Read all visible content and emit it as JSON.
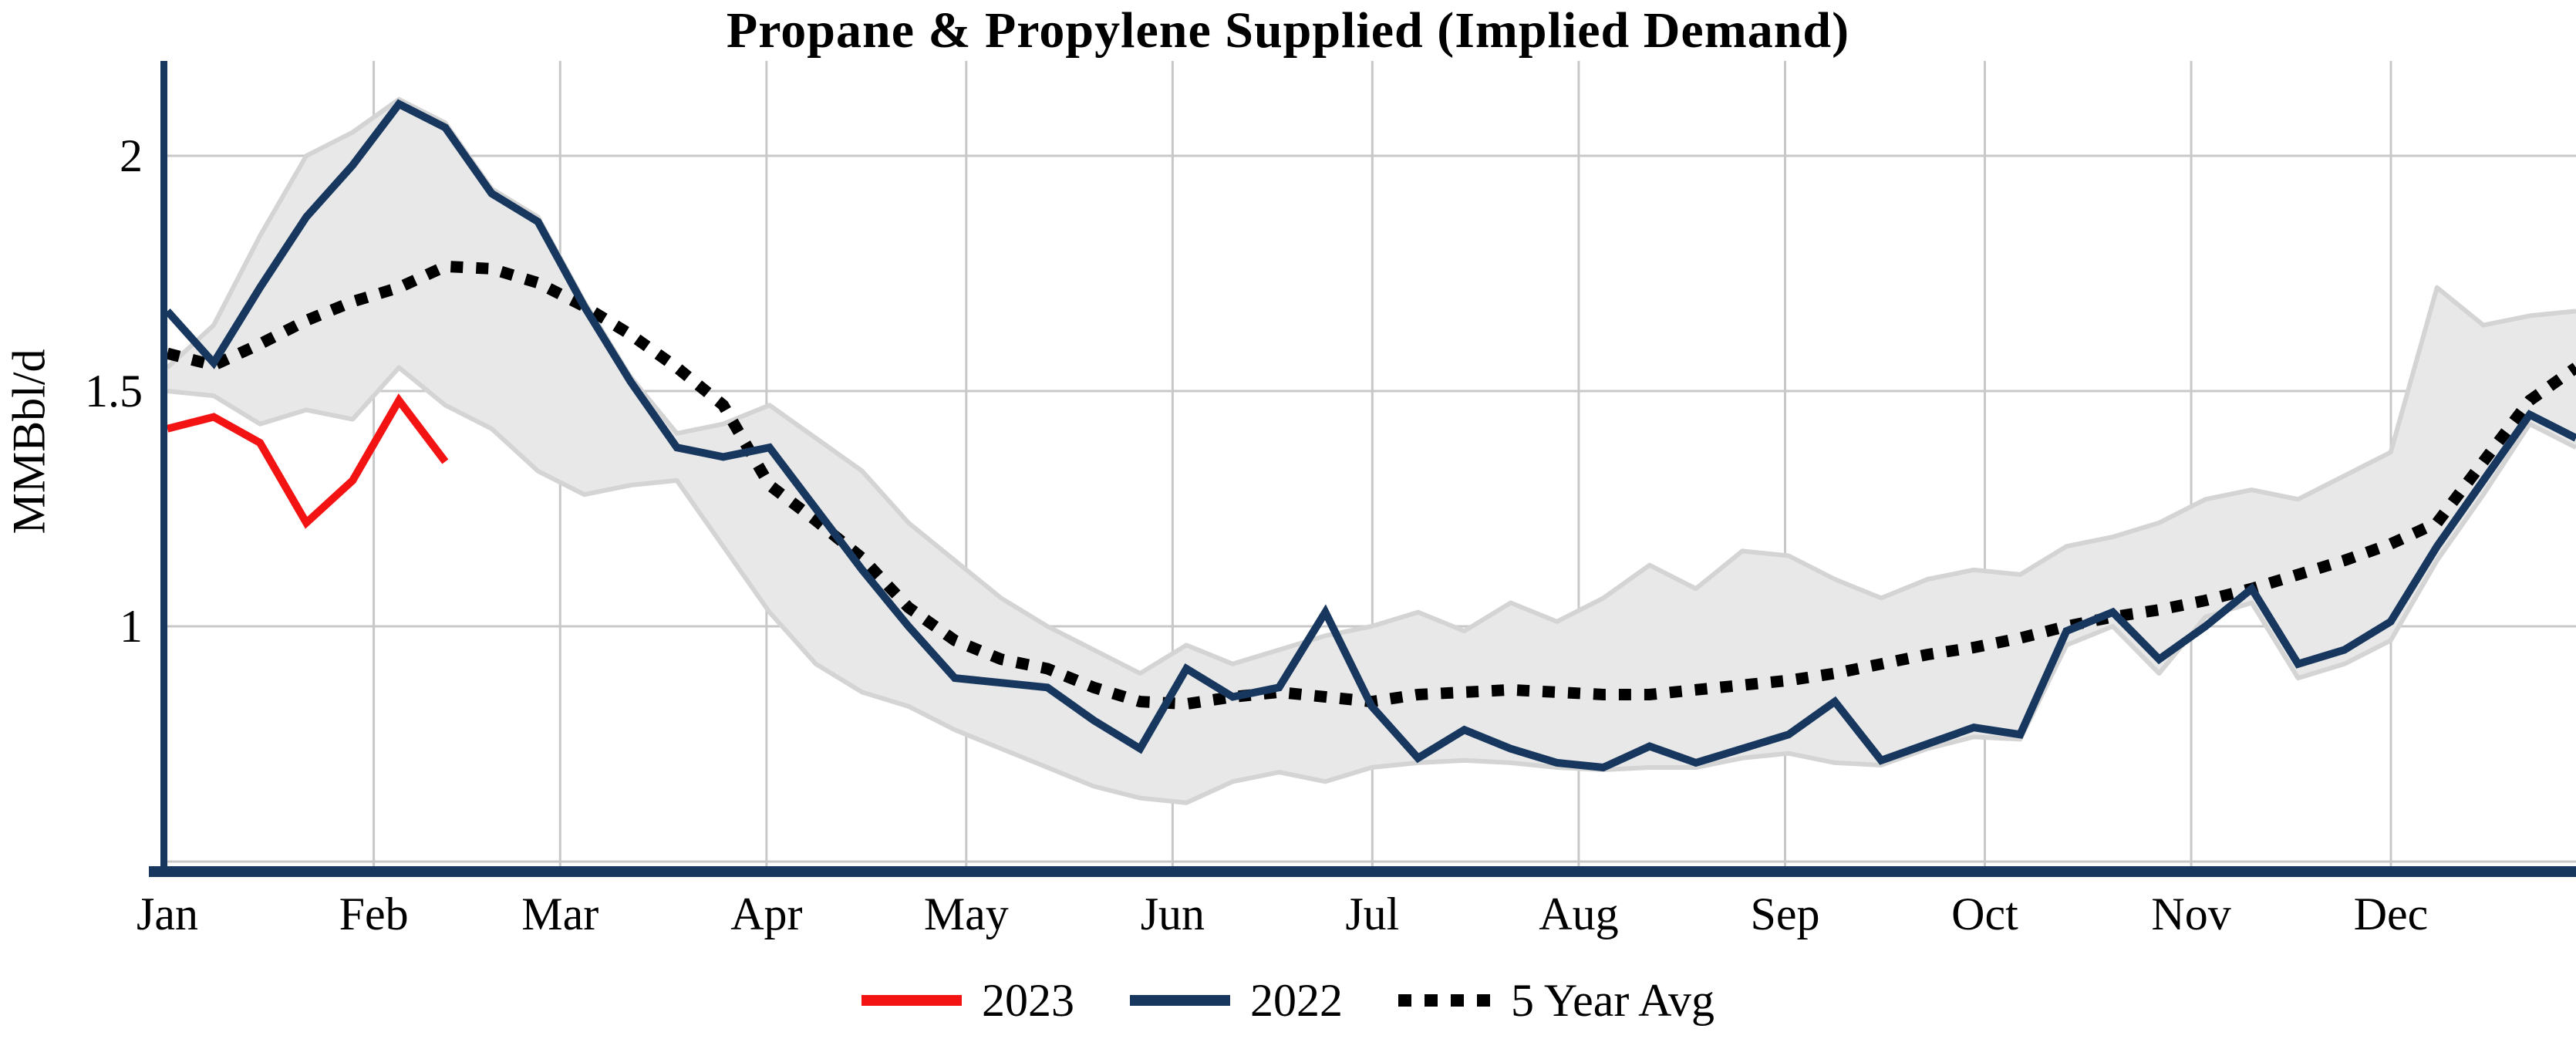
{
  "title": "Propane & Propylene Supplied (Implied Demand)",
  "y_axis": {
    "label": "MMBbl/d",
    "ticks": [
      {
        "label": "2",
        "value": 2.0
      },
      {
        "label": "1.5",
        "value": 1.5
      },
      {
        "label": "1",
        "value": 1.0
      }
    ],
    "unlabeled_gridlines": [
      0.5
    ]
  },
  "x_axis": {
    "months": [
      "Jan",
      "Feb",
      "Mar",
      "Apr",
      "May",
      "Jun",
      "Jul",
      "Aug",
      "Sep",
      "Oct",
      "Nov",
      "Dec"
    ],
    "month_days": [
      31,
      28,
      31,
      30,
      31,
      30,
      31,
      31,
      30,
      31,
      30,
      31
    ]
  },
  "legend": {
    "items": [
      {
        "label": "2023",
        "color": "#f31313",
        "style": "solid"
      },
      {
        "label": "2022",
        "color": "#17375e",
        "style": "solid"
      },
      {
        "label": "5 Year Avg",
        "color": "#000000",
        "style": "dotted"
      }
    ]
  },
  "colors": {
    "red": "#f31313",
    "navy": "#17375e",
    "black": "#000000",
    "band_fill": "#e8e8e8",
    "band_edge": "#d4d4d4",
    "gridline": "#c8c8c8",
    "axis": "#17375e"
  },
  "chart_data": {
    "type": "line",
    "title": "Propane & Propylene Supplied (Implied Demand)",
    "xlabel": "",
    "ylabel": "MMBbl/d",
    "x_unit": "weekly points, Jan through Dec",
    "ylim": [
      0.48,
      2.2
    ],
    "grid": true,
    "legend_position": "bottom-center",
    "band": {
      "name": "5-year range",
      "top": [
        1.55,
        1.64,
        1.83,
        2.0,
        2.05,
        2.12,
        2.07,
        1.93,
        1.87,
        1.69,
        1.53,
        1.41,
        1.43,
        1.47,
        1.4,
        1.33,
        1.22,
        1.14,
        1.06,
        1.0,
        0.95,
        0.9,
        0.96,
        0.92,
        0.95,
        0.98,
        1.0,
        1.03,
        0.99,
        1.05,
        1.01,
        1.06,
        1.13,
        1.08,
        1.16,
        1.15,
        1.1,
        1.06,
        1.1,
        1.12,
        1.11,
        1.17,
        1.19,
        1.22,
        1.27,
        1.29,
        1.27,
        1.32,
        1.37,
        1.72,
        1.64,
        1.66,
        1.67
      ],
      "bottom": [
        1.5,
        1.49,
        1.43,
        1.46,
        1.44,
        1.55,
        1.47,
        1.42,
        1.33,
        1.28,
        1.3,
        1.31,
        1.17,
        1.03,
        0.92,
        0.86,
        0.83,
        0.78,
        0.74,
        0.7,
        0.66,
        0.635,
        0.625,
        0.67,
        0.69,
        0.67,
        0.7,
        0.71,
        0.715,
        0.71,
        0.7,
        0.695,
        0.7,
        0.7,
        0.72,
        0.73,
        0.71,
        0.705,
        0.74,
        0.765,
        0.76,
        0.96,
        1.0,
        0.9,
        1.02,
        1.05,
        0.89,
        0.92,
        0.97,
        1.14,
        1.28,
        1.43,
        1.38
      ]
    },
    "series": [
      {
        "name": "2022",
        "color": "#17375e",
        "style": "solid",
        "values": [
          1.67,
          1.56,
          1.72,
          1.87,
          1.98,
          2.11,
          2.06,
          1.92,
          1.86,
          1.68,
          1.52,
          1.38,
          1.36,
          1.38,
          1.25,
          1.12,
          1.0,
          0.89,
          0.88,
          0.87,
          0.8,
          0.74,
          0.91,
          0.85,
          0.87,
          1.03,
          0.83,
          0.72,
          0.78,
          0.74,
          0.71,
          0.7,
          0.745,
          0.71,
          0.74,
          0.77,
          0.84,
          0.715,
          0.75,
          0.785,
          0.77,
          0.99,
          1.03,
          0.93,
          1.0,
          1.08,
          0.92,
          0.95,
          1.01,
          1.17,
          1.31,
          1.45,
          1.4
        ]
      },
      {
        "name": "5 Year Avg",
        "color": "#000000",
        "style": "dotted",
        "values": [
          1.58,
          1.555,
          1.6,
          1.65,
          1.69,
          1.72,
          1.765,
          1.76,
          1.73,
          1.68,
          1.62,
          1.55,
          1.47,
          1.3,
          1.225,
          1.145,
          1.04,
          0.97,
          0.93,
          0.91,
          0.87,
          0.84,
          0.835,
          0.85,
          0.86,
          0.85,
          0.84,
          0.855,
          0.86,
          0.865,
          0.86,
          0.855,
          0.855,
          0.865,
          0.875,
          0.885,
          0.9,
          0.92,
          0.94,
          0.955,
          0.975,
          1.0,
          1.02,
          1.035,
          1.055,
          1.08,
          1.11,
          1.14,
          1.175,
          1.22,
          1.35,
          1.48,
          1.55
        ]
      },
      {
        "name": "2023",
        "color": "#f31313",
        "style": "solid",
        "values": [
          1.42,
          1.445,
          1.39,
          1.22,
          1.31,
          1.48,
          1.35
        ]
      }
    ]
  }
}
